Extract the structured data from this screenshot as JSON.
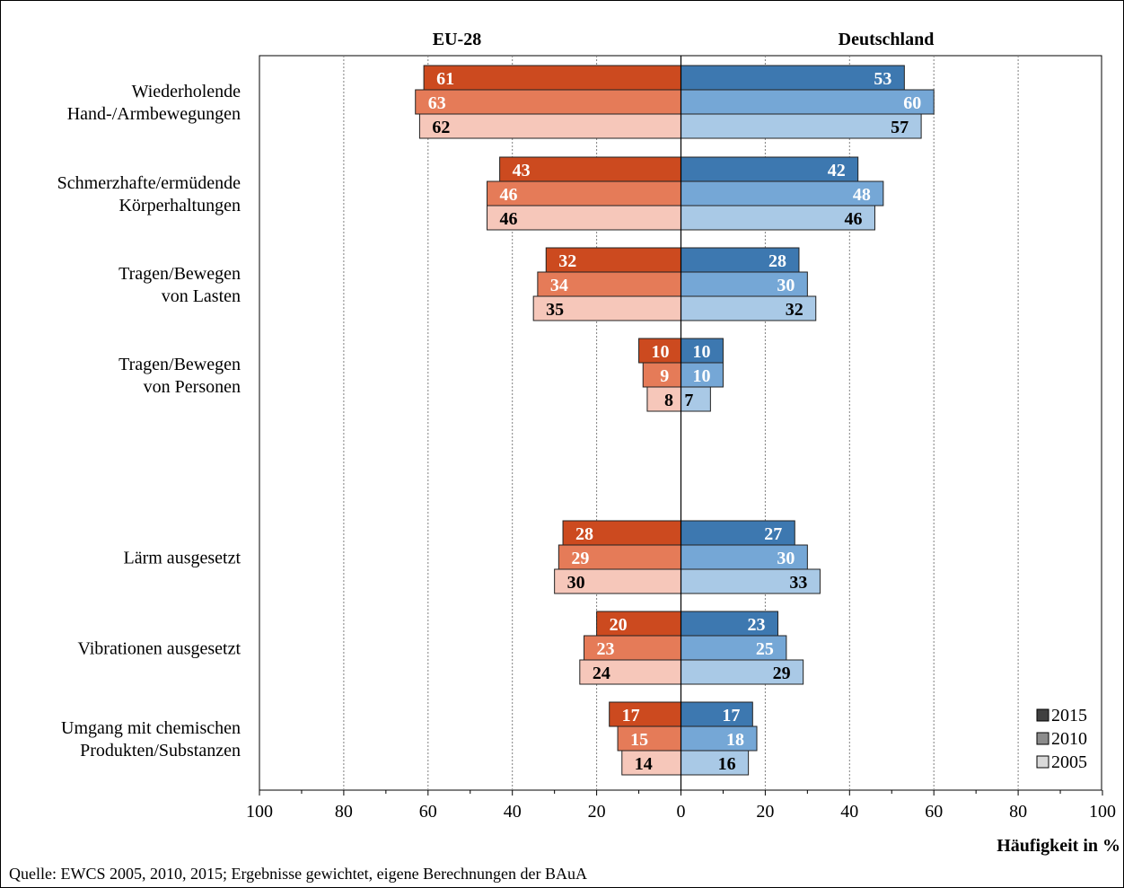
{
  "chart_data": {
    "type": "bar",
    "orientation": "horizontal-butterfly",
    "panels": [
      "EU-28",
      "Deutschland"
    ],
    "categories": [
      [
        "Wiederholende",
        "Hand-/Armbewegungen"
      ],
      [
        "Schmerzhafte/ermüdende",
        "Körperhaltungen"
      ],
      [
        "Tragen/Bewegen",
        "von Lasten"
      ],
      [
        "Tragen/Bewegen",
        "von Personen"
      ],
      [
        "Lärm ausgesetzt"
      ],
      [
        "Vibrationen ausgesetzt"
      ],
      [
        "Umgang mit chemischen",
        "Produkten/Substanzen"
      ]
    ],
    "series": [
      {
        "name": "2015",
        "eu28": [
          61,
          43,
          32,
          10,
          28,
          20,
          17
        ],
        "deutschland": [
          53,
          42,
          28,
          10,
          27,
          23,
          17
        ]
      },
      {
        "name": "2010",
        "eu28": [
          63,
          46,
          34,
          9,
          29,
          23,
          15
        ],
        "deutschland": [
          60,
          48,
          30,
          10,
          30,
          25,
          18
        ]
      },
      {
        "name": "2005",
        "eu28": [
          62,
          46,
          35,
          8,
          30,
          24,
          14
        ],
        "deutschland": [
          57,
          46,
          32,
          7,
          33,
          29,
          16
        ]
      }
    ],
    "xlim": [
      0,
      100
    ],
    "ticks": [
      "100",
      "80",
      "60",
      "40",
      "20",
      "0",
      "20",
      "40",
      "60",
      "80",
      "100"
    ],
    "xlabel": "Häufigkeit in %",
    "grid": "vertical dotted",
    "legend": {
      "placement": "bottom-right",
      "entries": [
        "2015",
        "2010",
        "2005"
      ],
      "colors": [
        "#404040",
        "#8c8c8c",
        "#d9d9d9"
      ]
    },
    "colors": {
      "eu28": [
        "#cc4a1f",
        "#e57b58",
        "#f6c7ba"
      ],
      "deutschland": [
        "#3d78b0",
        "#75a7d6",
        "#a9c9e6"
      ]
    },
    "source": "Quelle: EWCS 2005, 2010, 2015; Ergebnisse gewichtet, eigene Berechnungen der BAuA"
  }
}
